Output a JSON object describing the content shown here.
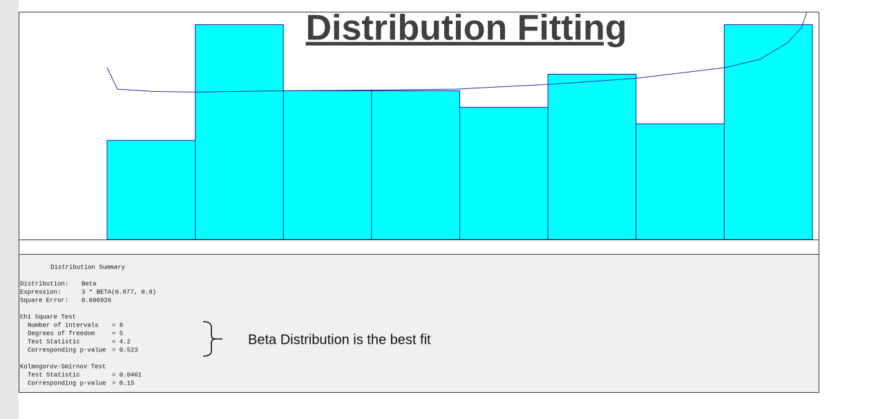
{
  "chart_data": {
    "type": "histogram",
    "title": "Distribution Fitting",
    "bins": [
      0,
      0.375,
      0.75,
      1.125,
      1.5,
      1.875,
      2.25,
      2.625,
      3
    ],
    "values": [
      6,
      13,
      9,
      9,
      8,
      10,
      7,
      13
    ],
    "color": "#00ffff",
    "edge_color": "#1c1ca8",
    "fit_curve": {
      "color": "#2a2aa0",
      "x": [
        0,
        0.044,
        0.191,
        0.367,
        0.749,
        1.131,
        1.484,
        1.895,
        2.248,
        2.63,
        2.777,
        2.894,
        2.953,
        2.976
      ],
      "y": [
        10.4,
        9.1,
        8.96,
        8.92,
        9.0,
        9.04,
        9.1,
        9.4,
        9.75,
        10.4,
        10.9,
        11.9,
        12.8,
        13.75
      ]
    }
  },
  "summary": {
    "title": "Distribution Summary",
    "rows": [
      {
        "label": "Distribution:",
        "value": "Beta"
      },
      {
        "label": "Expression:",
        "value": "3 * BETA(0.977, 0.9)"
      },
      {
        "label": "Square Error:",
        "value": "0.006926"
      }
    ],
    "chi_square": {
      "title": "Chi Square Test",
      "rows": [
        {
          "label": "Number of intervals",
          "value": "= 8"
        },
        {
          "label": "Degrees of freedom",
          "value": "= 5"
        },
        {
          "label": "Test Statistic",
          "value": "= 4.2"
        },
        {
          "label": "Corresponding p-value",
          "value": "= 0.523"
        }
      ]
    },
    "ks": {
      "title": "Kolmogorov-Smirnov Test",
      "rows": [
        {
          "label": "Test Statistic",
          "value": "= 0.0461"
        },
        {
          "label": "Corresponding p-value",
          "value": "> 0.15"
        }
      ]
    }
  },
  "annotation": "Beta Distribution is the best fit"
}
